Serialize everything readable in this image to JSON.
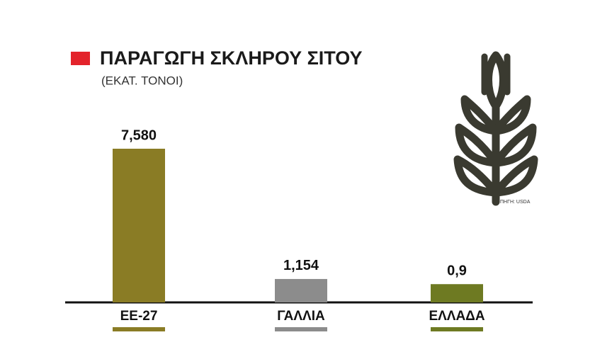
{
  "chart_data": {
    "type": "bar",
    "title": "ΠΑΡΑΓΩΓΗ ΣΚΛΗΡΟΥ ΣΙΤΟΥ",
    "subtitle": "(ΕΚΑΤ. ΤΟΝΟΙ)",
    "source": "ΠΗΓΗ: USDA",
    "categories": [
      "ΕΕ-27",
      "ΓΑΛΛΙΑ",
      "ΕΛΛΑΔΑ"
    ],
    "values": [
      7.58,
      1.154,
      0.9
    ],
    "value_labels": [
      "7,580",
      "1,154",
      "0,9"
    ],
    "colors": [
      "#8a7c25",
      "#8c8c8c",
      "#6e7a22"
    ]
  }
}
